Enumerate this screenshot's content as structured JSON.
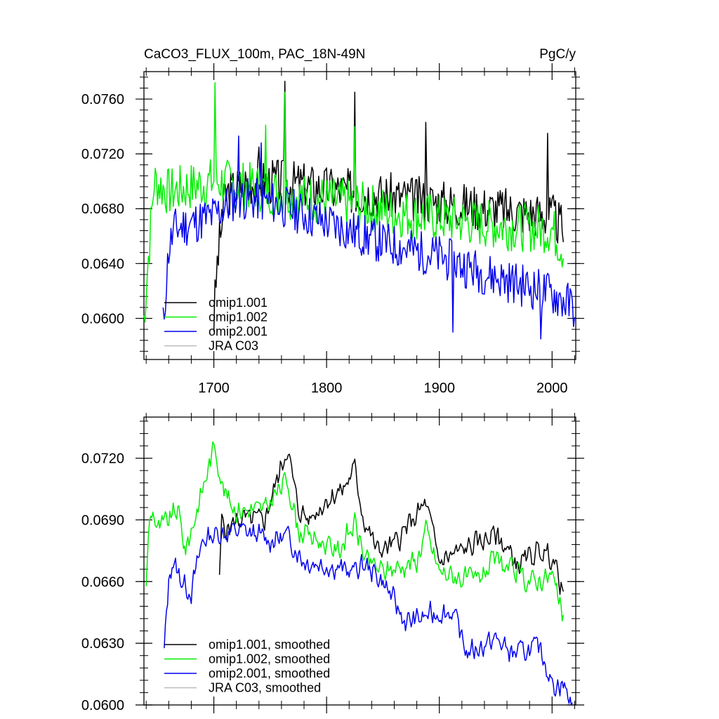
{
  "chart_data": [
    {
      "type": "line",
      "title": "CaCO3_FLUX_100m, PAC_18N-49N",
      "units": "PgC/y",
      "xlim": [
        1638,
        2021
      ],
      "ylim": [
        0.057,
        0.078
      ],
      "xticks": [
        1700,
        1800,
        1900,
        2000
      ],
      "xtick_labels": [
        "1700",
        "1800",
        "1900",
        "2000"
      ],
      "yticks": [
        0.06,
        0.064,
        0.068,
        0.072,
        0.076
      ],
      "ytick_labels": [
        "0.0600",
        "0.0640",
        "0.0680",
        "0.0720",
        "0.0760"
      ],
      "legend": [
        "omip1.001",
        "omip1.002",
        "omip2.001",
        "JRA C03"
      ],
      "series": [
        {
          "name": "omip1.001",
          "color": "#000000",
          "amp": 0.0017,
          "seed": 3,
          "points": [
            [
              1700,
              0.06
            ],
            [
              1703,
              0.064
            ],
            [
              1710,
              0.069
            ],
            [
              1730,
              0.07
            ],
            [
              1760,
              0.07
            ],
            [
              1800,
              0.0695
            ],
            [
              1850,
              0.069
            ],
            [
              1900,
              0.0685
            ],
            [
              1950,
              0.068
            ],
            [
              2000,
              0.0675
            ],
            [
              2010,
              0.0665
            ]
          ],
          "spikes": [
            [
              1763,
              0.0773
            ],
            [
              1825,
              0.0765
            ],
            [
              1888,
              0.0743
            ],
            [
              1740,
              0.0725
            ],
            [
              1996,
              0.0735
            ]
          ]
        },
        {
          "name": "omip1.002",
          "color": "#00ee00",
          "amp": 0.0018,
          "seed": 7,
          "points": [
            [
              1638,
              0.06
            ],
            [
              1642,
              0.0645
            ],
            [
              1647,
              0.07
            ],
            [
              1660,
              0.0692
            ],
            [
              1700,
              0.07
            ],
            [
              1740,
              0.0695
            ],
            [
              1780,
              0.0688
            ],
            [
              1820,
              0.0684
            ],
            [
              1860,
              0.0677
            ],
            [
              1900,
              0.0673
            ],
            [
              1950,
              0.0668
            ],
            [
              2000,
              0.0665
            ],
            [
              2010,
              0.065
            ]
          ],
          "spikes": [
            [
              1701,
              0.0772
            ],
            [
              1763,
              0.0765
            ],
            [
              1746,
              0.0741
            ],
            [
              1825,
              0.074
            ]
          ]
        },
        {
          "name": "omip2.001",
          "color": "#0000ee",
          "amp": 0.0016,
          "seed": 11,
          "points": [
            [
              1655,
              0.0595
            ],
            [
              1660,
              0.065
            ],
            [
              1665,
              0.0665
            ],
            [
              1700,
              0.0675
            ],
            [
              1720,
              0.0688
            ],
            [
              1750,
              0.0685
            ],
            [
              1800,
              0.067
            ],
            [
              1850,
              0.0655
            ],
            [
              1900,
              0.0645
            ],
            [
              1950,
              0.063
            ],
            [
              2000,
              0.0618
            ],
            [
              2020,
              0.0608
            ]
          ],
          "spikes": [
            [
              1722,
              0.0733
            ],
            [
              1742,
              0.0728
            ],
            [
              1912,
              0.059
            ],
            [
              1990,
              0.0585
            ]
          ]
        },
        {
          "name": "JRA C03",
          "color": "#bbbbbb",
          "amp": 0,
          "seed": 0,
          "points": [],
          "spikes": []
        }
      ]
    },
    {
      "type": "line",
      "title": "",
      "xlim": [
        1638,
        2021
      ],
      "ylim": [
        0.06,
        0.074
      ],
      "xticks": [
        1700,
        1800,
        1900,
        2000
      ],
      "xtick_labels": [],
      "yticks": [
        0.06,
        0.063,
        0.066,
        0.069,
        0.072
      ],
      "ytick_labels": [
        "0.0600",
        "0.0630",
        "0.0660",
        "0.0690",
        "0.0720"
      ],
      "legend": [
        "omip1.001, smoothed",
        "omip1.002, smoothed",
        "omip2.001, smoothed",
        "JRA C03, smoothed"
      ],
      "series": [
        {
          "name": "omip1.001, smoothed",
          "color": "#000000",
          "amp": 0.0007,
          "seed": 5,
          "points": [
            [
              1705,
              0.066
            ],
            [
              1707,
              0.069
            ],
            [
              1712,
              0.0685
            ],
            [
              1720,
              0.069
            ],
            [
              1745,
              0.069
            ],
            [
              1765,
              0.0725
            ],
            [
              1775,
              0.0695
            ],
            [
              1785,
              0.069
            ],
            [
              1800,
              0.07
            ],
            [
              1815,
              0.0705
            ],
            [
              1825,
              0.0715
            ],
            [
              1833,
              0.069
            ],
            [
              1845,
              0.0675
            ],
            [
              1860,
              0.0678
            ],
            [
              1888,
              0.0698
            ],
            [
              1900,
              0.067
            ],
            [
              1920,
              0.0675
            ],
            [
              1950,
              0.0683
            ],
            [
              1970,
              0.0668
            ],
            [
              1990,
              0.0675
            ],
            [
              2000,
              0.0672
            ],
            [
              2010,
              0.0655
            ]
          ]
        },
        {
          "name": "omip1.002, smoothed",
          "color": "#00ee00",
          "amp": 0.0007,
          "seed": 9,
          "points": [
            [
              1640,
              0.066
            ],
            [
              1643,
              0.069
            ],
            [
              1646,
              0.0695
            ],
            [
              1650,
              0.0685
            ],
            [
              1660,
              0.069
            ],
            [
              1668,
              0.0695
            ],
            [
              1675,
              0.0675
            ],
            [
              1690,
              0.0705
            ],
            [
              1701,
              0.0727
            ],
            [
              1708,
              0.0705
            ],
            [
              1720,
              0.0695
            ],
            [
              1745,
              0.0695
            ],
            [
              1765,
              0.071
            ],
            [
              1775,
              0.0685
            ],
            [
              1800,
              0.0678
            ],
            [
              1810,
              0.0675
            ],
            [
              1825,
              0.0688
            ],
            [
              1835,
              0.067
            ],
            [
              1850,
              0.0665
            ],
            [
              1880,
              0.067
            ],
            [
              1888,
              0.0685
            ],
            [
              1900,
              0.0665
            ],
            [
              1930,
              0.066
            ],
            [
              1950,
              0.067
            ],
            [
              1980,
              0.066
            ],
            [
              2000,
              0.0663
            ],
            [
              2010,
              0.0642
            ]
          ]
        },
        {
          "name": "omip2.001, smoothed",
          "color": "#0000ee",
          "amp": 0.0007,
          "seed": 13,
          "points": [
            [
              1656,
              0.0627
            ],
            [
              1660,
              0.066
            ],
            [
              1663,
              0.067
            ],
            [
              1672,
              0.066
            ],
            [
              1680,
              0.0655
            ],
            [
              1690,
              0.068
            ],
            [
              1700,
              0.0683
            ],
            [
              1725,
              0.0685
            ],
            [
              1750,
              0.068
            ],
            [
              1765,
              0.0682
            ],
            [
              1780,
              0.067
            ],
            [
              1800,
              0.0668
            ],
            [
              1820,
              0.0665
            ],
            [
              1835,
              0.0668
            ],
            [
              1850,
              0.066
            ],
            [
              1870,
              0.064
            ],
            [
              1900,
              0.0645
            ],
            [
              1912,
              0.0645
            ],
            [
              1925,
              0.0625
            ],
            [
              1950,
              0.0632
            ],
            [
              1965,
              0.0625
            ],
            [
              1990,
              0.0628
            ],
            [
              2000,
              0.061
            ],
            [
              2010,
              0.061
            ],
            [
              2018,
              0.06
            ]
          ]
        },
        {
          "name": "JRA C03, smoothed",
          "color": "#bbbbbb",
          "amp": 0,
          "seed": 0,
          "points": []
        }
      ]
    }
  ]
}
